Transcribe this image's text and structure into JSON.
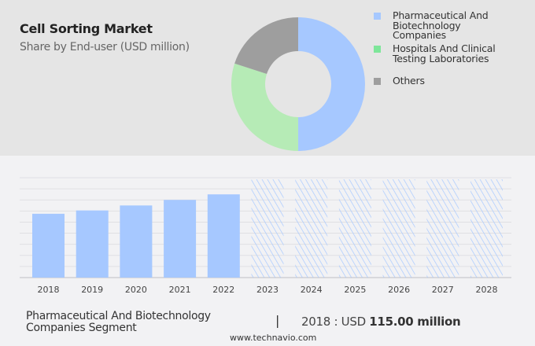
{
  "header": {
    "title": "Cell Sorting Market",
    "subtitle": "Share by End-user (USD million)"
  },
  "chart_data": [
    {
      "type": "pie",
      "variant": "donut",
      "title": "Cell Sorting Market",
      "subtitle": "Share by End-user (USD million)",
      "legend_position": "right",
      "slices": [
        {
          "name": "Pharmaceutical And Biotechnology Companies",
          "value": 50,
          "color": "#a6c8ff"
        },
        {
          "name": "Hospitals And Clinical Testing Laboratories",
          "value": 30,
          "color": "#b6ebb6"
        },
        {
          "name": "Others",
          "value": 20,
          "color": "#9e9e9e"
        }
      ],
      "legend_colors": [
        "#a6c8ff",
        "#7ee69a",
        "#9e9e9e"
      ]
    },
    {
      "type": "bar",
      "categories": [
        "2018",
        "2019",
        "2020",
        "2021",
        "2022",
        "2023",
        "2024",
        "2025",
        "2026",
        "2027",
        "2028"
      ],
      "values": [
        115,
        121,
        130,
        140,
        150,
        null,
        null,
        null,
        null,
        null,
        null
      ],
      "forecast_categories": [
        "2023",
        "2024",
        "2025",
        "2026",
        "2027",
        "2028"
      ],
      "ylim": [
        0,
        180
      ],
      "grid": true,
      "bar_color": "#a6c8ff",
      "forecast_style": "hatched"
    }
  ],
  "footer": {
    "segment": [
      "Pharmaceutical And Biotechnology",
      "Companies Segment"
    ],
    "separator": "|",
    "value_prefix": "2018 : USD ",
    "value_bold": "115.00 million",
    "url": "www.technavio.com"
  }
}
